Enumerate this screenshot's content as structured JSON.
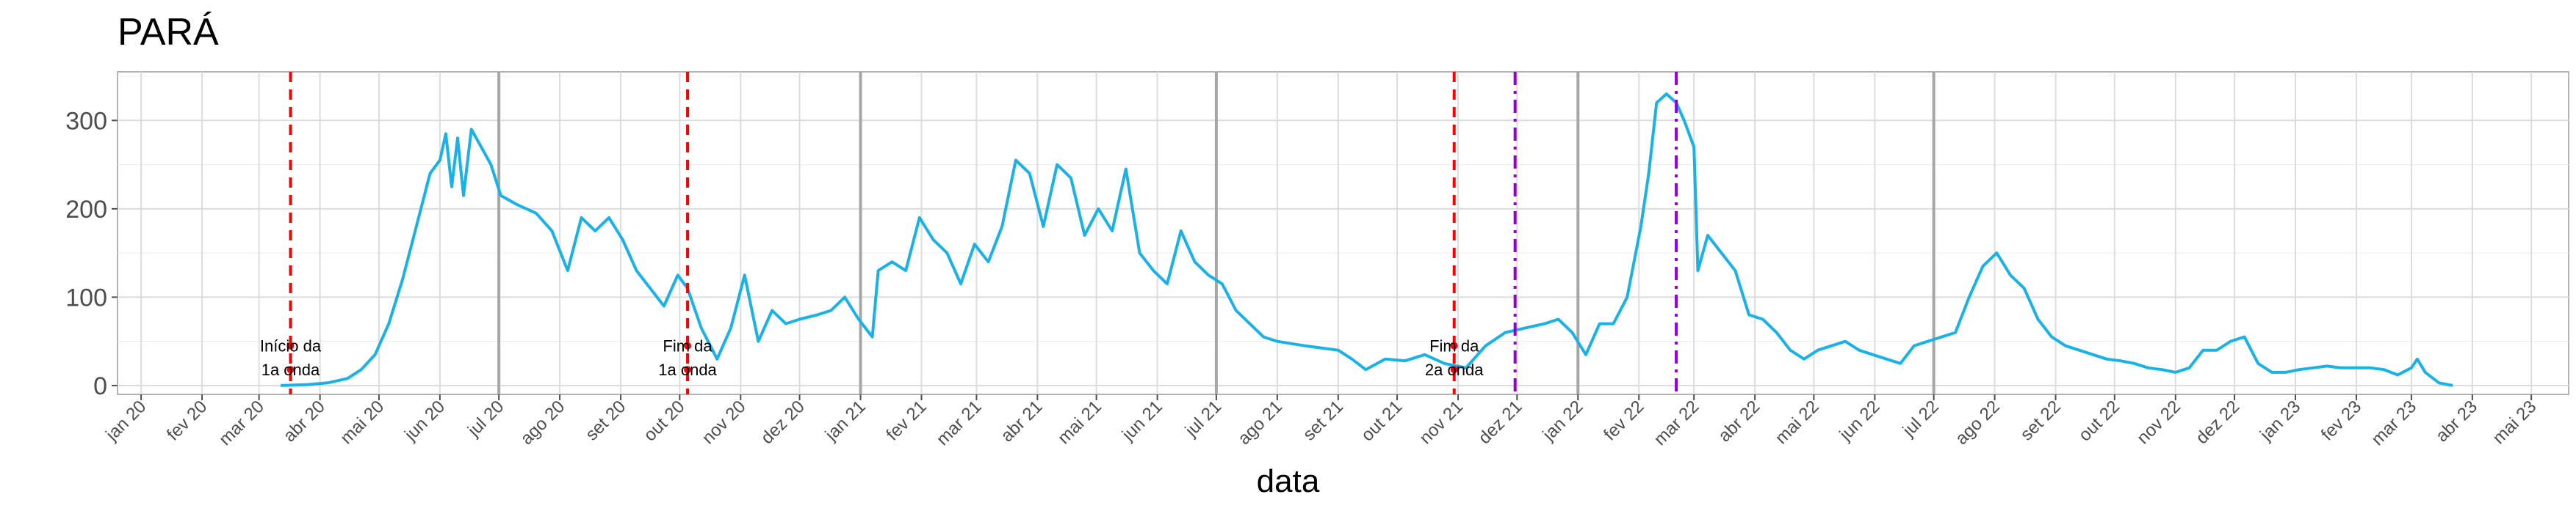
{
  "chart_data": {
    "type": "line",
    "title": "PARÁ",
    "xlabel": "data",
    "ylabel": "",
    "ylim": [
      -10,
      355
    ],
    "xlim": [
      "2019-12-20",
      "2023-05-20"
    ],
    "grid": true,
    "legend": "none",
    "y_ticks": [
      0,
      100,
      200,
      300
    ],
    "x_ticks": [
      {
        "date": "2020-01-01",
        "label": "jan 20"
      },
      {
        "date": "2020-02-01",
        "label": "fev 20"
      },
      {
        "date": "2020-03-01",
        "label": "mar 20"
      },
      {
        "date": "2020-04-01",
        "label": "abr 20"
      },
      {
        "date": "2020-05-01",
        "label": "mai 20"
      },
      {
        "date": "2020-06-01",
        "label": "jun 20"
      },
      {
        "date": "2020-07-01",
        "label": "jul 20"
      },
      {
        "date": "2020-08-01",
        "label": "ago 20"
      },
      {
        "date": "2020-09-01",
        "label": "set 20"
      },
      {
        "date": "2020-10-01",
        "label": "out 20"
      },
      {
        "date": "2020-11-01",
        "label": "nov 20"
      },
      {
        "date": "2020-12-01",
        "label": "dez 20"
      },
      {
        "date": "2021-01-01",
        "label": "jan 21"
      },
      {
        "date": "2021-02-01",
        "label": "fev 21"
      },
      {
        "date": "2021-03-01",
        "label": "mar 21"
      },
      {
        "date": "2021-04-01",
        "label": "abr 21"
      },
      {
        "date": "2021-05-01",
        "label": "mai 21"
      },
      {
        "date": "2021-06-01",
        "label": "jun 21"
      },
      {
        "date": "2021-07-01",
        "label": "jul 21"
      },
      {
        "date": "2021-08-01",
        "label": "ago 21"
      },
      {
        "date": "2021-09-01",
        "label": "set 21"
      },
      {
        "date": "2021-10-01",
        "label": "out 21"
      },
      {
        "date": "2021-11-01",
        "label": "nov 21"
      },
      {
        "date": "2021-12-01",
        "label": "dez 21"
      },
      {
        "date": "2022-01-01",
        "label": "jan 22"
      },
      {
        "date": "2022-02-01",
        "label": "fev 22"
      },
      {
        "date": "2022-03-01",
        "label": "mar 22"
      },
      {
        "date": "2022-04-01",
        "label": "abr 22"
      },
      {
        "date": "2022-05-01",
        "label": "mai 22"
      },
      {
        "date": "2022-06-01",
        "label": "jun 22"
      },
      {
        "date": "2022-07-01",
        "label": "jul 22"
      },
      {
        "date": "2022-08-01",
        "label": "ago 22"
      },
      {
        "date": "2022-09-01",
        "label": "set 22"
      },
      {
        "date": "2022-10-01",
        "label": "out 22"
      },
      {
        "date": "2022-11-01",
        "label": "nov 22"
      },
      {
        "date": "2022-12-01",
        "label": "dez 22"
      },
      {
        "date": "2023-01-01",
        "label": "jan 23"
      },
      {
        "date": "2023-02-01",
        "label": "fev 23"
      },
      {
        "date": "2023-03-01",
        "label": "mar 23"
      },
      {
        "date": "2023-04-01",
        "label": "abr 23"
      },
      {
        "date": "2023-05-01",
        "label": "mai 23"
      }
    ],
    "semester_lines": [
      "2020-07-01",
      "2021-01-01",
      "2021-07-01",
      "2022-01-01",
      "2022-07-01"
    ],
    "events": [
      {
        "date": "2020-03-17",
        "style": "dashed",
        "color": "#ff0000",
        "label_lines": [
          "Início da",
          "1a onda"
        ],
        "marker_values": [
          45,
          18
        ]
      },
      {
        "date": "2020-10-05",
        "style": "dashed",
        "color": "#ff0000",
        "label_lines": [
          "Fim da",
          "1a onda"
        ],
        "marker_values": [
          45,
          18
        ]
      },
      {
        "date": "2021-10-30",
        "style": "dashed",
        "color": "#ff0000",
        "label_lines": [
          "Fim da",
          "2a onda"
        ],
        "marker_values": [
          45,
          18
        ]
      },
      {
        "date": "2021-11-30",
        "style": "dotdash",
        "color": "#9400d3",
        "label_lines": [],
        "marker_values": []
      },
      {
        "date": "2022-02-20",
        "style": "dotdash",
        "color": "#9400d3",
        "label_lines": [],
        "marker_values": []
      }
    ],
    "series": [
      {
        "color": "#1ab2e6",
        "points": [
          [
            "2020-03-12",
            0
          ],
          [
            "2020-03-25",
            1
          ],
          [
            "2020-04-05",
            3
          ],
          [
            "2020-04-15",
            8
          ],
          [
            "2020-04-22",
            18
          ],
          [
            "2020-04-29",
            35
          ],
          [
            "2020-05-06",
            70
          ],
          [
            "2020-05-13",
            120
          ],
          [
            "2020-05-20",
            180
          ],
          [
            "2020-05-27",
            240
          ],
          [
            "2020-06-01",
            255
          ],
          [
            "2020-06-04",
            285
          ],
          [
            "2020-06-07",
            225
          ],
          [
            "2020-06-10",
            280
          ],
          [
            "2020-06-13",
            215
          ],
          [
            "2020-06-17",
            290
          ],
          [
            "2020-06-22",
            270
          ],
          [
            "2020-06-27",
            250
          ],
          [
            "2020-07-02",
            215
          ],
          [
            "2020-07-10",
            205
          ],
          [
            "2020-07-20",
            195
          ],
          [
            "2020-07-28",
            175
          ],
          [
            "2020-08-05",
            130
          ],
          [
            "2020-08-12",
            190
          ],
          [
            "2020-08-19",
            175
          ],
          [
            "2020-08-26",
            190
          ],
          [
            "2020-09-02",
            165
          ],
          [
            "2020-09-09",
            130
          ],
          [
            "2020-09-16",
            110
          ],
          [
            "2020-09-23",
            90
          ],
          [
            "2020-09-30",
            125
          ],
          [
            "2020-10-05",
            110
          ],
          [
            "2020-10-12",
            65
          ],
          [
            "2020-10-20",
            30
          ],
          [
            "2020-10-27",
            65
          ],
          [
            "2020-11-03",
            125
          ],
          [
            "2020-11-10",
            50
          ],
          [
            "2020-11-17",
            85
          ],
          [
            "2020-11-24",
            70
          ],
          [
            "2020-12-01",
            75
          ],
          [
            "2020-12-10",
            80
          ],
          [
            "2020-12-17",
            85
          ],
          [
            "2020-12-24",
            100
          ],
          [
            "2020-12-31",
            75
          ],
          [
            "2021-01-07",
            55
          ],
          [
            "2021-01-10",
            130
          ],
          [
            "2021-01-17",
            140
          ],
          [
            "2021-01-24",
            130
          ],
          [
            "2021-01-31",
            190
          ],
          [
            "2021-02-07",
            165
          ],
          [
            "2021-02-14",
            150
          ],
          [
            "2021-02-21",
            115
          ],
          [
            "2021-02-28",
            160
          ],
          [
            "2021-03-07",
            140
          ],
          [
            "2021-03-14",
            180
          ],
          [
            "2021-03-21",
            255
          ],
          [
            "2021-03-28",
            240
          ],
          [
            "2021-04-04",
            180
          ],
          [
            "2021-04-11",
            250
          ],
          [
            "2021-04-18",
            235
          ],
          [
            "2021-04-25",
            170
          ],
          [
            "2021-05-02",
            200
          ],
          [
            "2021-05-09",
            175
          ],
          [
            "2021-05-16",
            245
          ],
          [
            "2021-05-23",
            150
          ],
          [
            "2021-05-30",
            130
          ],
          [
            "2021-06-06",
            115
          ],
          [
            "2021-06-13",
            175
          ],
          [
            "2021-06-20",
            140
          ],
          [
            "2021-06-27",
            125
          ],
          [
            "2021-07-04",
            115
          ],
          [
            "2021-07-11",
            85
          ],
          [
            "2021-07-18",
            70
          ],
          [
            "2021-07-25",
            55
          ],
          [
            "2021-08-01",
            50
          ],
          [
            "2021-08-15",
            45
          ],
          [
            "2021-09-01",
            40
          ],
          [
            "2021-09-08",
            30
          ],
          [
            "2021-09-15",
            18
          ],
          [
            "2021-09-25",
            30
          ],
          [
            "2021-10-05",
            28
          ],
          [
            "2021-10-15",
            35
          ],
          [
            "2021-10-25",
            25
          ],
          [
            "2021-11-05",
            20
          ],
          [
            "2021-11-15",
            45
          ],
          [
            "2021-11-25",
            60
          ],
          [
            "2021-12-05",
            65
          ],
          [
            "2021-12-15",
            70
          ],
          [
            "2021-12-22",
            75
          ],
          [
            "2021-12-29",
            60
          ],
          [
            "2022-01-05",
            35
          ],
          [
            "2022-01-12",
            70
          ],
          [
            "2022-01-19",
            70
          ],
          [
            "2022-01-26",
            100
          ],
          [
            "2022-02-02",
            180
          ],
          [
            "2022-02-06",
            240
          ],
          [
            "2022-02-10",
            320
          ],
          [
            "2022-02-15",
            330
          ],
          [
            "2022-02-20",
            320
          ],
          [
            "2022-02-24",
            300
          ],
          [
            "2022-03-01",
            270
          ],
          [
            "2022-03-03",
            130
          ],
          [
            "2022-03-08",
            170
          ],
          [
            "2022-03-15",
            150
          ],
          [
            "2022-03-22",
            130
          ],
          [
            "2022-03-29",
            80
          ],
          [
            "2022-04-05",
            75
          ],
          [
            "2022-04-12",
            60
          ],
          [
            "2022-04-19",
            40
          ],
          [
            "2022-04-26",
            30
          ],
          [
            "2022-05-03",
            40
          ],
          [
            "2022-05-10",
            45
          ],
          [
            "2022-05-17",
            50
          ],
          [
            "2022-05-24",
            40
          ],
          [
            "2022-05-31",
            35
          ],
          [
            "2022-06-07",
            30
          ],
          [
            "2022-06-14",
            25
          ],
          [
            "2022-06-21",
            45
          ],
          [
            "2022-06-28",
            50
          ],
          [
            "2022-07-05",
            55
          ],
          [
            "2022-07-12",
            60
          ],
          [
            "2022-07-19",
            100
          ],
          [
            "2022-07-26",
            135
          ],
          [
            "2022-08-02",
            150
          ],
          [
            "2022-08-09",
            125
          ],
          [
            "2022-08-16",
            110
          ],
          [
            "2022-08-23",
            75
          ],
          [
            "2022-08-30",
            55
          ],
          [
            "2022-09-06",
            45
          ],
          [
            "2022-09-13",
            40
          ],
          [
            "2022-09-20",
            35
          ],
          [
            "2022-09-27",
            30
          ],
          [
            "2022-10-04",
            28
          ],
          [
            "2022-10-11",
            25
          ],
          [
            "2022-10-18",
            20
          ],
          [
            "2022-10-25",
            18
          ],
          [
            "2022-11-01",
            15
          ],
          [
            "2022-11-08",
            20
          ],
          [
            "2022-11-15",
            40
          ],
          [
            "2022-11-22",
            40
          ],
          [
            "2022-11-29",
            50
          ],
          [
            "2022-12-06",
            55
          ],
          [
            "2022-12-13",
            25
          ],
          [
            "2022-12-20",
            15
          ],
          [
            "2022-12-27",
            15
          ],
          [
            "2023-01-03",
            18
          ],
          [
            "2023-01-10",
            20
          ],
          [
            "2023-01-17",
            22
          ],
          [
            "2023-01-24",
            20
          ],
          [
            "2023-02-01",
            20
          ],
          [
            "2023-02-08",
            20
          ],
          [
            "2023-02-15",
            18
          ],
          [
            "2023-02-22",
            12
          ],
          [
            "2023-03-01",
            20
          ],
          [
            "2023-03-04",
            30
          ],
          [
            "2023-03-08",
            15
          ],
          [
            "2023-03-15",
            3
          ],
          [
            "2023-03-22",
            0
          ]
        ]
      }
    ]
  }
}
